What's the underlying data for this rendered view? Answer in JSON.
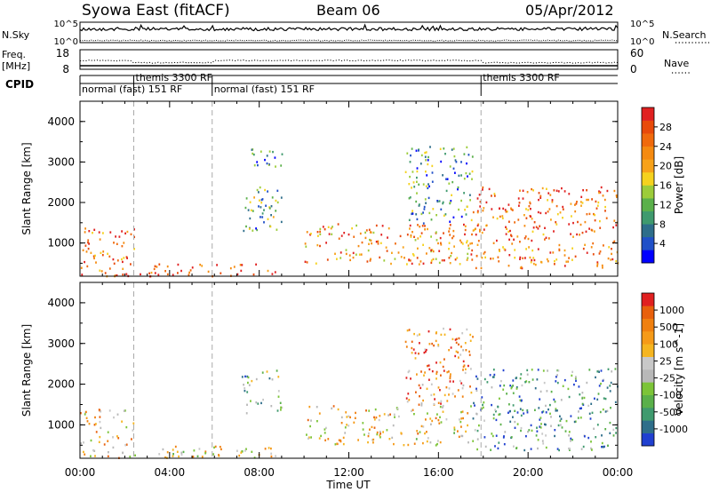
{
  "header": {
    "station": "Syowa East (fitACF)",
    "beam": "Beam 06",
    "date": "05/Apr/2012"
  },
  "strip_labels": {
    "nsky": "N.Sky",
    "nsearch": "N.Search",
    "freq_line1": "Freq.",
    "freq_line2": "[MHz]",
    "nave": "Nave",
    "cpid": "CPID"
  },
  "noise_axis": {
    "left_ticks": [
      "10^5",
      "10^0"
    ],
    "right_ticks": [
      "10^5",
      "10^0"
    ]
  },
  "freq_axis": {
    "left_ticks": [
      "18",
      "8"
    ],
    "right_ticks": [
      "60",
      "0"
    ]
  },
  "cpid_segments": [
    {
      "label": "normal (fast) 151 RF",
      "start_hour": 0.0,
      "end_hour": 2.4
    },
    {
      "label": "themis 3300 RF",
      "start_hour": 2.4,
      "end_hour": 5.9
    },
    {
      "label": "normal (fast) 151 RF",
      "start_hour": 5.9,
      "end_hour": 17.9
    },
    {
      "label": "themis 3300 RF",
      "start_hour": 17.9,
      "end_hour": 24.0
    }
  ],
  "chart_data": [
    {
      "type": "heatmap",
      "name_on_colorbar": "Power [dB]",
      "ylabel": "Slant Range [km]",
      "xlabel": "Time UT",
      "xlim": [
        0,
        24
      ],
      "ylim": [
        180,
        4500
      ],
      "y_ticks": [
        1000,
        2000,
        3000,
        4000
      ],
      "x_ticks": [
        "00:00",
        "04:00",
        "08:00",
        "12:00",
        "16:00",
        "20:00",
        "00:00"
      ],
      "colorbar_ticks": [
        "28",
        "24",
        "20",
        "16",
        "12",
        "8",
        "4"
      ],
      "colorbar_colors": [
        "#0000ff",
        "#2050c8",
        "#2e6e8a",
        "#3f9a6e",
        "#5ab04a",
        "#9ccc3a",
        "#f5d21e",
        "#f7a21a",
        "#f58a10",
        "#f06a0c",
        "#e84a0a",
        "#e02020"
      ],
      "regions": [
        {
          "t0": 0.0,
          "t1": 2.4,
          "r0": 200,
          "r1": 1400,
          "level": 0.8
        },
        {
          "t0": 2.4,
          "t1": 9.0,
          "r0": 200,
          "r1": 500,
          "level": 0.9
        },
        {
          "t0": 7.2,
          "t1": 9.0,
          "r0": 1300,
          "r1": 2400,
          "level": 0.35
        },
        {
          "t0": 7.5,
          "t1": 9.0,
          "r0": 2900,
          "r1": 3400,
          "level": 0.3
        },
        {
          "t0": 10.0,
          "t1": 17.5,
          "r0": 500,
          "r1": 1500,
          "level": 0.7
        },
        {
          "t0": 14.5,
          "t1": 17.5,
          "r0": 1500,
          "r1": 3400,
          "level": 0.3
        },
        {
          "t0": 17.5,
          "t1": 24.0,
          "r0": 400,
          "r1": 2400,
          "level": 0.8
        }
      ]
    },
    {
      "type": "heatmap",
      "name_on_colorbar": "Velocity [m s^-1]",
      "ylabel": "Slant Range [km]",
      "xlabel": "Time UT",
      "xlim": [
        0,
        24
      ],
      "ylim": [
        180,
        4500
      ],
      "y_ticks": [
        1000,
        2000,
        3000,
        4000
      ],
      "x_ticks": [
        "00:00",
        "04:00",
        "08:00",
        "12:00",
        "16:00",
        "20:00",
        "00:00"
      ],
      "colorbar_ticks": [
        "1000",
        "500",
        "100",
        "25",
        "-25",
        "-100",
        "-500",
        "-1000"
      ],
      "colorbar_colors": [
        "#2040d0",
        "#2e6e8a",
        "#3f9a6e",
        "#5ab04a",
        "#7cc438",
        "#b8b8b8",
        "#c8c8c8",
        "#f5b520",
        "#f59a18",
        "#f0800f",
        "#e8600c",
        "#e02020"
      ],
      "regions": [
        {
          "t0": 0.0,
          "t1": 2.4,
          "r0": 200,
          "r1": 1400,
          "level": 0.65
        },
        {
          "t0": 2.4,
          "t1": 9.0,
          "r0": 200,
          "r1": 500,
          "level": 0.55
        },
        {
          "t0": 7.2,
          "t1": 9.0,
          "r0": 1300,
          "r1": 2400,
          "level": 0.35
        },
        {
          "t0": 10.0,
          "t1": 17.5,
          "r0": 500,
          "r1": 1500,
          "level": 0.6
        },
        {
          "t0": 14.5,
          "t1": 17.5,
          "r0": 1500,
          "r1": 3400,
          "level": 0.75
        },
        {
          "t0": 17.5,
          "t1": 24.0,
          "r0": 400,
          "r1": 2400,
          "level": 0.25
        }
      ]
    }
  ],
  "xlabel": "Time UT"
}
